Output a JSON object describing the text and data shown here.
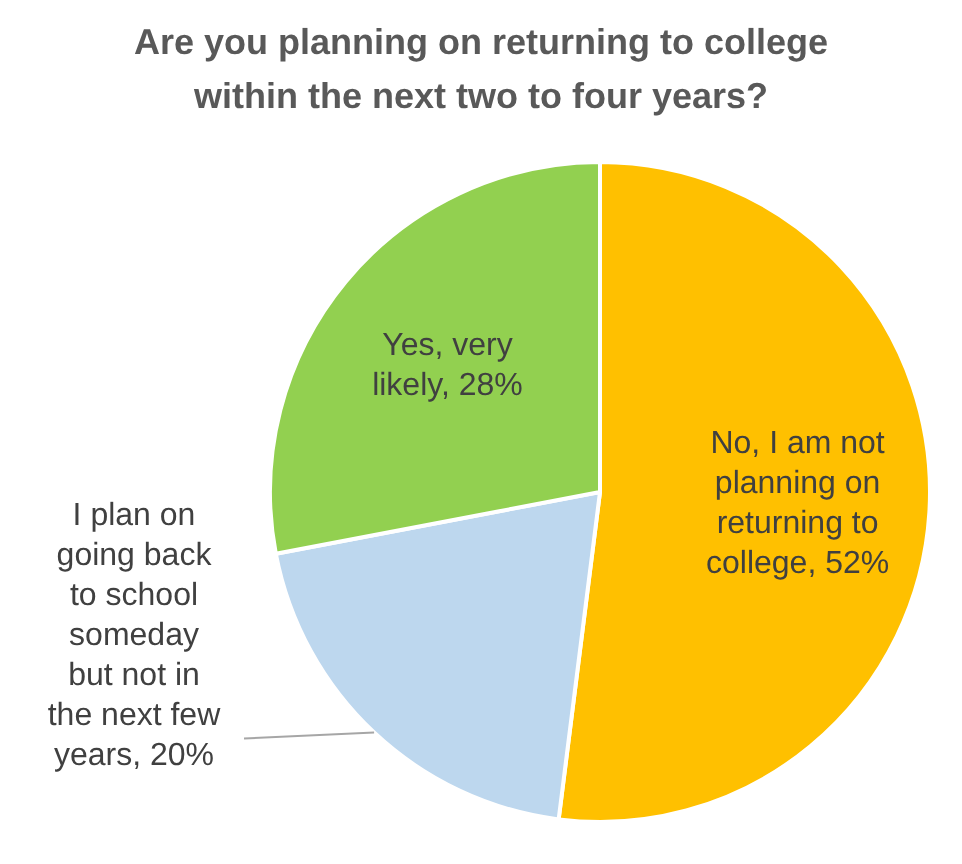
{
  "chart_data": {
    "type": "pie",
    "title": "Are you planning on returning to college within the next two to four years?",
    "categories": [
      "No, I am not planning on returning to college",
      "I plan on going back to school someday but not in the next few years",
      "Yes, very likely"
    ],
    "values": [
      52,
      20,
      28
    ],
    "colors": [
      "#ffc000",
      "#bdd7ee",
      "#92d050"
    ],
    "value_labels": [
      "52%",
      "20%",
      "28%"
    ],
    "legend": false
  }
}
